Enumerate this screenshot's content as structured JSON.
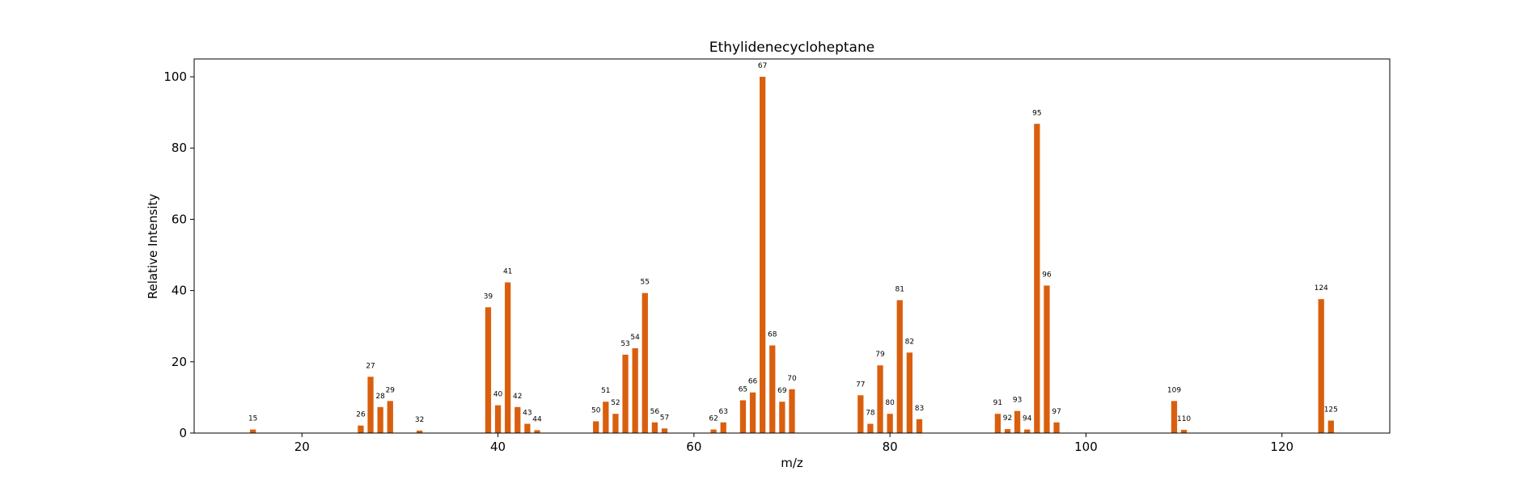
{
  "chart_data": {
    "type": "bar",
    "title": "Ethylidenecycloheptane",
    "xlabel": "m/z",
    "ylabel": "Relative Intensity",
    "xlim": [
      9,
      131
    ],
    "ylim": [
      0,
      105
    ],
    "xticks": [
      20,
      40,
      60,
      80,
      100,
      120
    ],
    "yticks": [
      0,
      20,
      40,
      60,
      80,
      100
    ],
    "grid": false,
    "color": "#d95f0e",
    "x": [
      15,
      26,
      27,
      28,
      29,
      32,
      39,
      40,
      41,
      42,
      43,
      44,
      50,
      51,
      52,
      53,
      54,
      55,
      56,
      57,
      62,
      63,
      65,
      66,
      67,
      68,
      69,
      70,
      77,
      78,
      79,
      80,
      81,
      82,
      83,
      91,
      92,
      93,
      94,
      95,
      96,
      97,
      109,
      110,
      124,
      125
    ],
    "values": [
      1.0,
      2.1,
      15.8,
      7.3,
      9.0,
      0.7,
      35.3,
      7.8,
      42.3,
      7.3,
      2.6,
      0.8,
      3.3,
      8.8,
      5.4,
      22.0,
      23.8,
      39.3,
      3.0,
      1.3,
      1.0,
      3.0,
      9.2,
      11.4,
      100.0,
      24.6,
      8.8,
      12.3,
      10.6,
      2.6,
      19.0,
      5.4,
      37.3,
      22.6,
      3.9,
      5.4,
      1.1,
      6.2,
      1.0,
      86.8,
      41.4,
      3.0,
      9.0,
      0.9,
      37.6,
      3.5
    ]
  }
}
